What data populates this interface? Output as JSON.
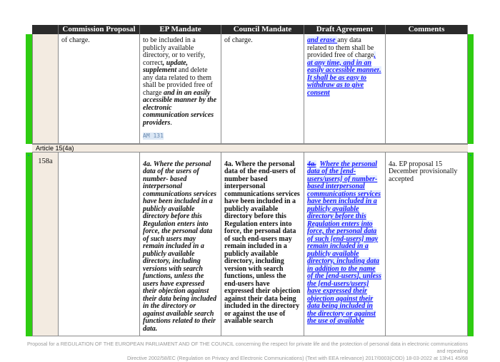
{
  "header": {
    "columns": [
      "",
      "Commission Proposal",
      "EP Mandate",
      "Council Mandate",
      "Draft Agreement",
      "Comments"
    ]
  },
  "row1": {
    "number": "",
    "commission": "of charge.",
    "ep": [
      {
        "t": "to be included in a publicly available directory, or to verify, correct",
        "s": "n"
      },
      {
        "t": ", update, supplement",
        "s": "bi"
      },
      {
        "t": " and delete any data related to them shall be provided free of charge ",
        "s": "n"
      },
      {
        "t": "and in an easily accessible manner by the electronic communication services providers",
        "s": "bi"
      },
      {
        "t": ".",
        "s": "n"
      }
    ],
    "ep_amendment": "AM 131",
    "council": "of charge.",
    "draft": [
      {
        "t": "and erase ",
        "s": "ins"
      },
      {
        "t": " any data related to them shall be provided free of charge",
        "s": "n"
      },
      {
        "t": ", at any time, and in an easily accessible manner",
        "s": "ins"
      },
      {
        "t": ". It shall be as easy to withdraw as to give consent",
        "s": "ins"
      }
    ],
    "comments": ""
  },
  "article_label": "Article 15(4a)",
  "row2": {
    "number": "158a",
    "commission": "",
    "ep": "4a.   Where the personal data of the users of number- based interpersonal communications services have been included in a publicly available directory before this Regulation enters into force, the personal data of such users may remain included in a publicly available directory, including versions with search functions, unless the users have expressed their objection against their data being included in the directory or against available search functions related to their data.",
    "council": "4a.  Where the personal data of the end-users of number based interpersonal communications services have been included in a publicly available directory before this Regulation enters into force, the personal data of such end-users may remain included in a publicly available directory, including version with search functions, unless the end-users have expressed their objection against their data being included in the directory or against the use of available search",
    "draft_strike": "4a.",
    "draft": "Where the personal data of the [end-users/users] of number-based interpersonal communications services have been included in a publicly available directory before this Regulation enters into force, the personal data of such [end-users] may remain included in a publicly available directory, including data in addition to the name of the [end-users], unless the [end-users/users] have expressed their objection against their data being included in the directory or against the use of available",
    "comments": "4a.  EP proposal 15 December provisionally accepted"
  },
  "footer": {
    "line1": "Proposal for a REGULATION OF THE EUROPEAN PARLIAMENT AND OF THE COUNCIL concerning the respect for private life and the protection of personal data in electronic communications and repealing",
    "line2": "Directive 2002/58/EC (Regulation on Privacy and Electronic Communications) (Text with EEA relevance)   2017/0003(COD)   18-03-2022 at 13h41     45/68"
  },
  "colors": {
    "header_bg": "#2b2b2b",
    "status_green": "#2ecc11",
    "insert_blue": "#1a1aff",
    "number_col_bg": "#f3ebe1"
  }
}
